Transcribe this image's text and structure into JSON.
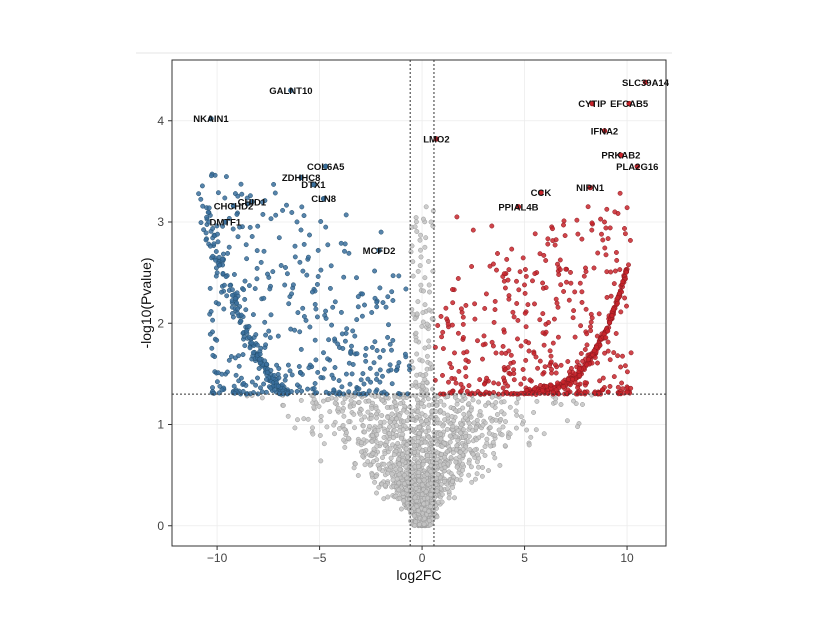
{
  "chart_data": {
    "type": "scatter",
    "title": "",
    "xlabel": "log2FC",
    "ylabel": "-log10(Pvalue)",
    "xlim": [
      -12.2,
      11.9
    ],
    "ylim": [
      -0.2,
      4.6
    ],
    "x_ticks": [
      -10,
      -5,
      0,
      5,
      10
    ],
    "x_tick_labels": [
      "−10",
      "−5",
      "0",
      "5",
      "10"
    ],
    "y_ticks": [
      0,
      1,
      2,
      3,
      4
    ],
    "y_tick_labels": [
      "0",
      "1",
      "2",
      "3",
      "4"
    ],
    "grid": true,
    "legend": "none",
    "thresholds": {
      "log2fc": [
        -0.58,
        0.58
      ],
      "neg_log10_p": 1.3
    },
    "colors": {
      "down": "#3a6f9c",
      "up": "#c8242b",
      "ns": "#c4c4c4",
      "frame": "#333333",
      "grid": "#ececec"
    },
    "labeled_genes": [
      {
        "gene": "GALNT10",
        "x": -6.4,
        "y": 4.3,
        "group": "down"
      },
      {
        "gene": "NKAIN1",
        "x": -10.3,
        "y": 4.02,
        "group": "down"
      },
      {
        "gene": "COL6A5",
        "x": -4.7,
        "y": 3.55,
        "group": "down"
      },
      {
        "gene": "ZDHHC8",
        "x": -5.9,
        "y": 3.44,
        "group": "down"
      },
      {
        "gene": "DTX1",
        "x": -5.3,
        "y": 3.37,
        "group": "down"
      },
      {
        "gene": "CHID1",
        "x": -8.3,
        "y": 3.2,
        "group": "down"
      },
      {
        "gene": "CHCHD2",
        "x": -9.2,
        "y": 3.16,
        "group": "down"
      },
      {
        "gene": "CLN8",
        "x": -4.8,
        "y": 3.23,
        "group": "down"
      },
      {
        "gene": "DMTF1",
        "x": -9.6,
        "y": 3.0,
        "group": "down"
      },
      {
        "gene": "MCFD2",
        "x": -2.1,
        "y": 2.72,
        "group": "down"
      },
      {
        "gene": "LMO2",
        "x": 0.7,
        "y": 3.82,
        "group": "up"
      },
      {
        "gene": "SLC39A14",
        "x": 10.9,
        "y": 4.38,
        "group": "up"
      },
      {
        "gene": "CYTIP",
        "x": 8.3,
        "y": 4.17,
        "group": "up"
      },
      {
        "gene": "EFCAB5",
        "x": 10.1,
        "y": 4.17,
        "group": "up"
      },
      {
        "gene": "IFNA2",
        "x": 8.9,
        "y": 3.9,
        "group": "up"
      },
      {
        "gene": "PRKAB2",
        "x": 9.7,
        "y": 3.66,
        "group": "up"
      },
      {
        "gene": "PLA2G16",
        "x": 10.5,
        "y": 3.55,
        "group": "up"
      },
      {
        "gene": "NIPN1",
        "x": 8.2,
        "y": 3.34,
        "group": "up"
      },
      {
        "gene": "CCK",
        "x": 5.8,
        "y": 3.29,
        "group": "up"
      },
      {
        "gene": "PPIAL4B",
        "x": 4.7,
        "y": 3.15,
        "group": "up"
      }
    ]
  }
}
